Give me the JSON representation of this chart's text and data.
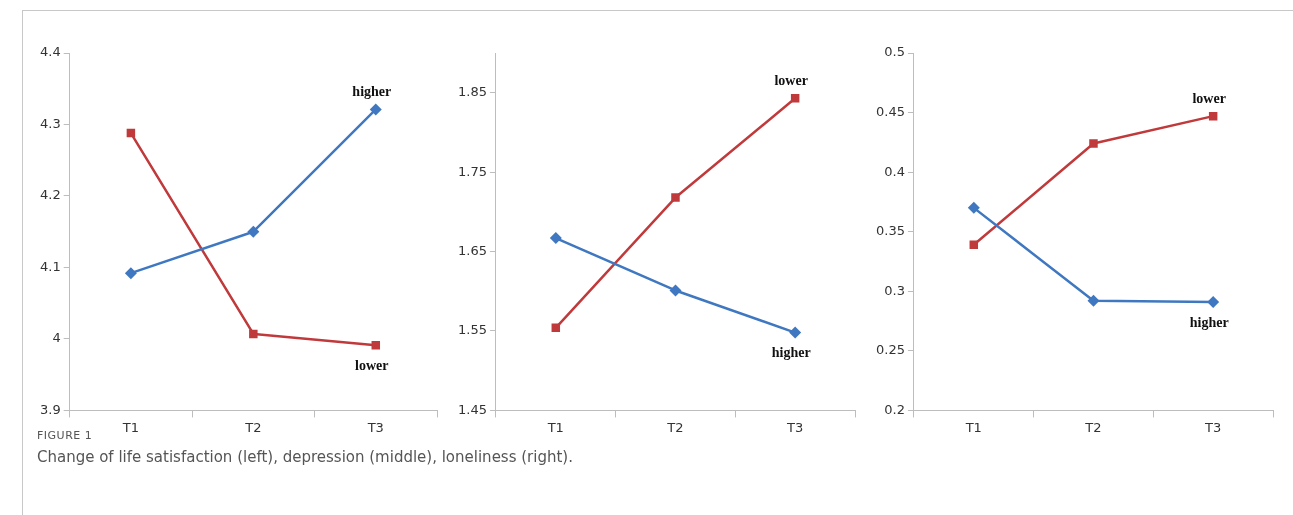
{
  "chart_data": [
    {
      "type": "line",
      "categories": [
        "T1",
        "T2",
        "T3"
      ],
      "ylim": [
        3.9,
        4.4
      ],
      "yticks": [
        3.9,
        4,
        4.1,
        4.2,
        4.3,
        4.4
      ],
      "grid": false,
      "legend": false,
      "series": [
        {
          "name": "higher",
          "color": "#3f78c0",
          "marker": "diamond",
          "values": [
            4.092,
            4.15,
            4.321
          ]
        },
        {
          "name": "lower",
          "color": "#c0393b",
          "marker": "square",
          "values": [
            4.288,
            4.007,
            3.991
          ]
        }
      ],
      "annotations": [
        "FIGURE 1",
        "Change of life satisfaction (left), depression (middle), loneliness (right)."
      ]
    },
    {
      "type": "line",
      "categories": [
        "T1",
        "T2",
        "T3"
      ],
      "ylim": [
        1.45,
        1.9
      ],
      "yticks": [
        1.45,
        1.55,
        1.65,
        1.75,
        1.85
      ],
      "grid": false,
      "legend": false,
      "series": [
        {
          "name": "higher",
          "color": "#3f78c0",
          "marker": "diamond",
          "values": [
            1.667,
            1.601,
            1.548
          ]
        },
        {
          "name": "lower",
          "color": "#c0393b",
          "marker": "square",
          "values": [
            1.554,
            1.718,
            1.843
          ]
        }
      ]
    },
    {
      "type": "line",
      "categories": [
        "T1",
        "T2",
        "T3"
      ],
      "ylim": [
        0.2,
        0.5
      ],
      "yticks": [
        0.2,
        0.25,
        0.3,
        0.35,
        0.4,
        0.45,
        0.5
      ],
      "grid": false,
      "legend": false,
      "series": [
        {
          "name": "higher",
          "color": "#3f78c0",
          "marker": "diamond",
          "values": [
            0.37,
            0.292,
            0.291
          ]
        },
        {
          "name": "lower",
          "color": "#c0393b",
          "marker": "square",
          "values": [
            0.339,
            0.424,
            0.447
          ]
        }
      ]
    }
  ]
}
